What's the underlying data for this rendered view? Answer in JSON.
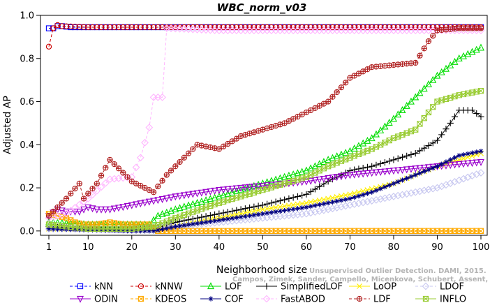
{
  "chart_data": {
    "type": "line",
    "title": "WBC_norm_v03",
    "xlabel": "Neighborhood size",
    "ylabel": "Adjusted AP",
    "xlim": [
      1,
      100
    ],
    "ylim": [
      -0.02,
      1.0
    ],
    "xticks": [
      1,
      10,
      20,
      30,
      40,
      50,
      60,
      70,
      80,
      90,
      100
    ],
    "yticks": [
      0.0,
      0.2,
      0.4,
      0.6,
      0.8,
      1.0
    ],
    "yticks_labels": [
      "0.0",
      "0.2",
      "0.4",
      "0.6",
      "0.8",
      "1.0"
    ],
    "grid": false,
    "legend_position": "bottom",
    "watermark": [
      "Unsupervised Outlier Detection. DAMI, 2015.",
      "Campos, Zimek, Sander, Campello, Micenkova, Schubert, Assent, Houle"
    ],
    "series": [
      {
        "name": "kNN",
        "color": "#0000ff",
        "marker": "square",
        "dash": "4,3",
        "anchors": [
          [
            1,
            0.94
          ],
          [
            2,
            0.94
          ],
          [
            3,
            0.95
          ],
          [
            4,
            0.95
          ],
          [
            6,
            0.945
          ],
          [
            10,
            0.945
          ],
          [
            30,
            0.945
          ],
          [
            60,
            0.945
          ],
          [
            100,
            0.945
          ]
        ]
      },
      {
        "name": "kNNW",
        "color": "#cc0000",
        "marker": "circle",
        "dash": "4,3",
        "anchors": [
          [
            1,
            0.855
          ],
          [
            2,
            0.94
          ],
          [
            3,
            0.955
          ],
          [
            4,
            0.95
          ],
          [
            10,
            0.945
          ],
          [
            40,
            0.945
          ],
          [
            70,
            0.945
          ],
          [
            100,
            0.945
          ]
        ]
      },
      {
        "name": "LOF",
        "color": "#00dd00",
        "marker": "triangle-up",
        "dash": "",
        "anchors": [
          [
            1,
            0.04
          ],
          [
            10,
            0.03
          ],
          [
            20,
            0.03
          ],
          [
            24,
            0.03
          ],
          [
            26,
            0.07
          ],
          [
            30,
            0.1
          ],
          [
            40,
            0.16
          ],
          [
            50,
            0.22
          ],
          [
            60,
            0.28
          ],
          [
            65,
            0.33
          ],
          [
            70,
            0.37
          ],
          [
            75,
            0.43
          ],
          [
            80,
            0.52
          ],
          [
            85,
            0.62
          ],
          [
            90,
            0.72
          ],
          [
            95,
            0.8
          ],
          [
            100,
            0.85
          ]
        ]
      },
      {
        "name": "SimplifiedLOF",
        "color": "#000000",
        "marker": "plus",
        "dash": "",
        "anchors": [
          [
            1,
            0.02
          ],
          [
            10,
            0.01
          ],
          [
            20,
            0.01
          ],
          [
            25,
            0.01
          ],
          [
            30,
            0.04
          ],
          [
            40,
            0.08
          ],
          [
            50,
            0.12
          ],
          [
            60,
            0.17
          ],
          [
            65,
            0.23
          ],
          [
            70,
            0.28
          ],
          [
            75,
            0.3
          ],
          [
            80,
            0.33
          ],
          [
            85,
            0.36
          ],
          [
            90,
            0.42
          ],
          [
            93,
            0.5
          ],
          [
            95,
            0.56
          ],
          [
            98,
            0.56
          ],
          [
            100,
            0.53
          ]
        ]
      },
      {
        "name": "LoOP",
        "color": "#ffee00",
        "marker": "cross",
        "dash": "",
        "anchors": [
          [
            1,
            0.01
          ],
          [
            20,
            0.01
          ],
          [
            25,
            0.01
          ],
          [
            30,
            0.02
          ],
          [
            40,
            0.06
          ],
          [
            50,
            0.1
          ],
          [
            60,
            0.13
          ],
          [
            70,
            0.17
          ],
          [
            80,
            0.22
          ],
          [
            90,
            0.3
          ],
          [
            100,
            0.36
          ]
        ]
      },
      {
        "name": "LDOF",
        "color": "#c8c8f0",
        "marker": "diamond",
        "dash": "4,3",
        "anchors": [
          [
            1,
            0.01
          ],
          [
            20,
            0.01
          ],
          [
            30,
            0.02
          ],
          [
            40,
            0.04
          ],
          [
            50,
            0.06
          ],
          [
            60,
            0.08
          ],
          [
            70,
            0.12
          ],
          [
            80,
            0.16
          ],
          [
            90,
            0.2
          ],
          [
            100,
            0.27
          ]
        ]
      },
      {
        "name": "ODIN",
        "color": "#9900cc",
        "marker": "triangle-down",
        "dash": "",
        "anchors": [
          [
            1,
            0.07
          ],
          [
            3,
            0.1
          ],
          [
            5,
            0.09
          ],
          [
            8,
            0.09
          ],
          [
            10,
            0.11
          ],
          [
            12,
            0.1
          ],
          [
            15,
            0.1
          ],
          [
            20,
            0.12
          ],
          [
            25,
            0.14
          ],
          [
            30,
            0.16
          ],
          [
            40,
            0.19
          ],
          [
            50,
            0.21
          ],
          [
            60,
            0.23
          ],
          [
            70,
            0.26
          ],
          [
            80,
            0.28
          ],
          [
            90,
            0.3
          ],
          [
            100,
            0.32
          ]
        ]
      },
      {
        "name": "KDEOS",
        "color": "#ffaa00",
        "marker": "square-x",
        "dash": "4,3",
        "anchors": [
          [
            1,
            0.08
          ],
          [
            3,
            0.07
          ],
          [
            5,
            0.06
          ],
          [
            7,
            0.04
          ],
          [
            9,
            0.03
          ],
          [
            12,
            0.03
          ],
          [
            15,
            0.04
          ],
          [
            18,
            0.03
          ],
          [
            21,
            0.03
          ],
          [
            24,
            0.03
          ],
          [
            26,
            0.0
          ],
          [
            30,
            0.0
          ],
          [
            100,
            0.0
          ]
        ]
      },
      {
        "name": "COF",
        "color": "#000080",
        "marker": "asterisk",
        "dash": "",
        "anchors": [
          [
            1,
            0.01
          ],
          [
            20,
            0.0
          ],
          [
            25,
            0.0
          ],
          [
            30,
            0.02
          ],
          [
            40,
            0.05
          ],
          [
            50,
            0.08
          ],
          [
            60,
            0.11
          ],
          [
            70,
            0.15
          ],
          [
            75,
            0.18
          ],
          [
            80,
            0.22
          ],
          [
            85,
            0.26
          ],
          [
            90,
            0.3
          ],
          [
            95,
            0.35
          ],
          [
            100,
            0.37
          ]
        ]
      },
      {
        "name": "FastABOD",
        "color": "#ffb4ff",
        "marker": "diamond",
        "dash": "4,3",
        "anchors": [
          [
            1,
            0.06
          ],
          [
            5,
            0.08
          ],
          [
            10,
            0.15
          ],
          [
            15,
            0.24
          ],
          [
            20,
            0.25
          ],
          [
            22,
            0.34
          ],
          [
            24,
            0.48
          ],
          [
            25,
            0.62
          ],
          [
            27,
            0.62
          ],
          [
            28,
            0.94
          ],
          [
            40,
            0.93
          ],
          [
            60,
            0.93
          ],
          [
            80,
            0.93
          ],
          [
            100,
            0.93
          ]
        ]
      },
      {
        "name": "LDF",
        "color": "#b02020",
        "marker": "circle-plus",
        "dash": "4,3",
        "anchors": [
          [
            1,
            0.07
          ],
          [
            5,
            0.15
          ],
          [
            8,
            0.22
          ],
          [
            9,
            0.15
          ],
          [
            12,
            0.22
          ],
          [
            15,
            0.33
          ],
          [
            18,
            0.27
          ],
          [
            20,
            0.23
          ],
          [
            25,
            0.18
          ],
          [
            28,
            0.26
          ],
          [
            30,
            0.3
          ],
          [
            35,
            0.4
          ],
          [
            40,
            0.38
          ],
          [
            45,
            0.44
          ],
          [
            50,
            0.47
          ],
          [
            55,
            0.5
          ],
          [
            60,
            0.55
          ],
          [
            65,
            0.6
          ],
          [
            70,
            0.71
          ],
          [
            75,
            0.76
          ],
          [
            80,
            0.77
          ],
          [
            85,
            0.78
          ],
          [
            88,
            0.88
          ],
          [
            90,
            0.93
          ],
          [
            95,
            0.94
          ],
          [
            100,
            0.94
          ]
        ]
      },
      {
        "name": "INFLO",
        "color": "#99cc33",
        "marker": "square-x",
        "dash": "",
        "anchors": [
          [
            1,
            0.03
          ],
          [
            10,
            0.01
          ],
          [
            20,
            0.01
          ],
          [
            25,
            0.02
          ],
          [
            30,
            0.06
          ],
          [
            40,
            0.13
          ],
          [
            50,
            0.19
          ],
          [
            55,
            0.22
          ],
          [
            60,
            0.25
          ],
          [
            65,
            0.3
          ],
          [
            70,
            0.34
          ],
          [
            75,
            0.38
          ],
          [
            80,
            0.43
          ],
          [
            85,
            0.47
          ],
          [
            88,
            0.55
          ],
          [
            90,
            0.6
          ],
          [
            95,
            0.63
          ],
          [
            100,
            0.65
          ]
        ]
      }
    ]
  }
}
